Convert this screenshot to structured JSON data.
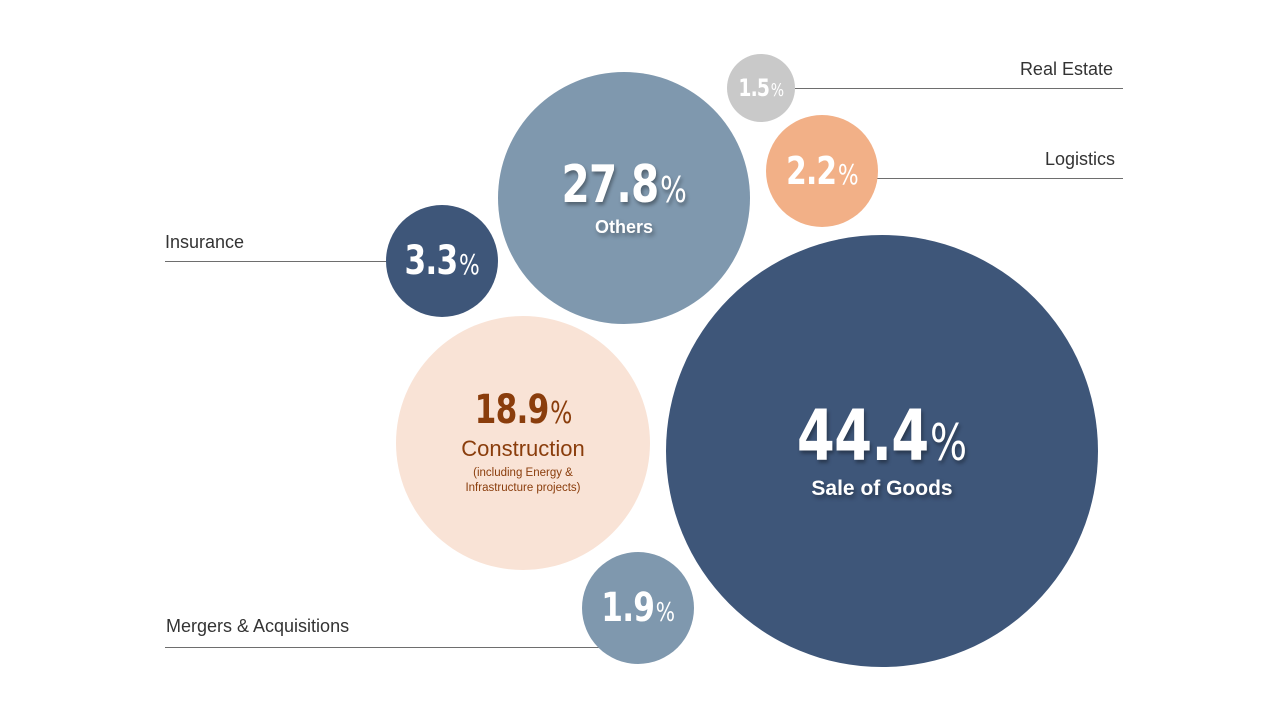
{
  "chart_data": {
    "type": "bubble",
    "value_suffix": "%",
    "colors": {
      "dark_navy": "#3e5679",
      "slate_blue": "#7f98ae",
      "light_gray": "#c9c9c9",
      "peach": "#f2b087",
      "pale_peach": "#f9e3d6",
      "brown_text": "#8a3d0c"
    },
    "points": [
      {
        "value": "44.4",
        "label": "Sale of Goods",
        "color": "#3e5679"
      },
      {
        "value": "27.8",
        "label": "Others",
        "color": "#7f98ae"
      },
      {
        "value": "18.9",
        "label": "Construction",
        "sublabel": "(including Energy & Infrastructure projects)",
        "color": "#f9e3d6"
      },
      {
        "value": "3.3",
        "label": "Insurance",
        "color": "#3e5679"
      },
      {
        "value": "2.2",
        "label": "Logistics",
        "color": "#f2b087"
      },
      {
        "value": "1.9",
        "label": "Mergers & Acquisitions",
        "color": "#7f98ae"
      },
      {
        "value": "1.5",
        "label": "Real Estate",
        "color": "#c9c9c9"
      }
    ]
  }
}
